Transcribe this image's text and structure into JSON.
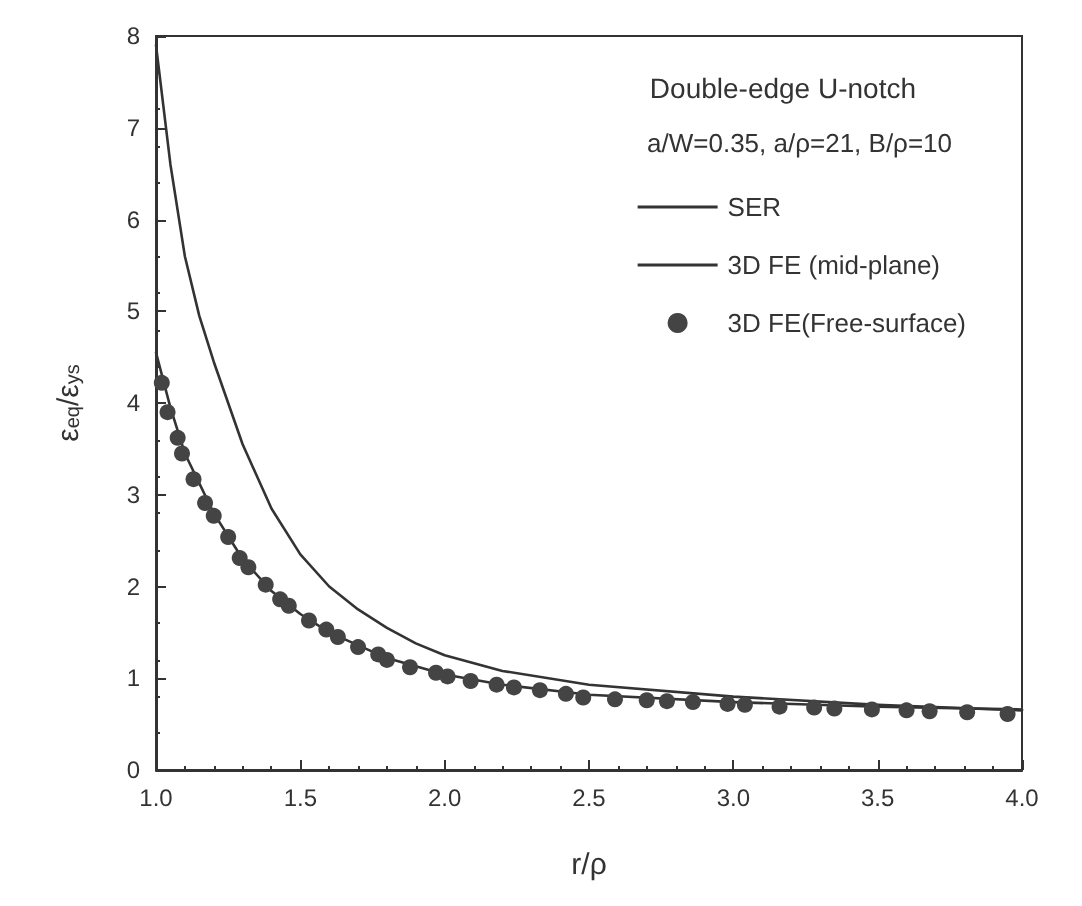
{
  "chart_data": {
    "type": "line",
    "title": "Double-edge U-notch",
    "subtitle": "a/W=0.35, a/ρ=21, B/ρ=10",
    "xlabel": "r/ρ",
    "ylabel": "ε$_{eq}$/ε$_{ys}$",
    "xlim": [
      1,
      4
    ],
    "xticks": [
      {
        "value": 1,
        "label": "1.0"
      },
      {
        "value": 1.5,
        "label": "1.5"
      },
      {
        "value": 2,
        "label": "2.0"
      },
      {
        "value": 2.5,
        "label": "2.5"
      },
      {
        "value": 3,
        "label": "3.0"
      },
      {
        "value": 3.5,
        "label": "3.5"
      },
      {
        "value": 4,
        "label": "4.0"
      }
    ],
    "ylim": [
      0,
      8
    ],
    "yticks": [
      0,
      1,
      2,
      3,
      4,
      5,
      6,
      7,
      8
    ],
    "grid": false,
    "legend": "top right",
    "line_style": "solid",
    "series": [
      {
        "name": "SER",
        "color": "#333333",
        "marker": "none",
        "x": [
          1.0,
          1.05,
          1.1,
          1.15,
          1.2,
          1.3,
          1.4,
          1.5,
          1.6,
          1.7,
          1.8,
          1.9,
          2.0,
          2.2,
          2.5,
          3.0,
          3.5,
          4.0
        ],
        "values": [
          7.9,
          6.6,
          5.6,
          4.95,
          4.45,
          3.55,
          2.85,
          2.35,
          2.0,
          1.75,
          1.55,
          1.38,
          1.25,
          1.08,
          0.93,
          0.8,
          0.71,
          0.65
        ]
      },
      {
        "name": "3D FE (mid-plane)",
        "color": "#333333",
        "marker": "none",
        "x": [
          1.0,
          1.05,
          1.1,
          1.2,
          1.3,
          1.4,
          1.5,
          1.6,
          1.8,
          2.0,
          2.2,
          2.5,
          3.0,
          3.5,
          4.0
        ],
        "values": [
          4.55,
          3.95,
          3.45,
          2.8,
          2.3,
          1.95,
          1.7,
          1.5,
          1.22,
          1.04,
          0.93,
          0.82,
          0.74,
          0.69,
          0.66
        ]
      },
      {
        "name": "3D FE(Free-surface)",
        "type": "scatter",
        "color": "#444444",
        "marker": "circle",
        "x": [
          1.02,
          1.04,
          1.075,
          1.09,
          1.13,
          1.17,
          1.2,
          1.25,
          1.29,
          1.32,
          1.38,
          1.43,
          1.46,
          1.53,
          1.59,
          1.63,
          1.7,
          1.77,
          1.8,
          1.88,
          1.97,
          2.01,
          2.09,
          2.18,
          2.24,
          2.33,
          2.42,
          2.48,
          2.59,
          2.7,
          2.77,
          2.86,
          2.98,
          3.04,
          3.16,
          3.28,
          3.35,
          3.48,
          3.6,
          3.68,
          3.81,
          3.95
        ],
        "values": [
          4.22,
          3.9,
          3.62,
          3.45,
          3.17,
          2.91,
          2.77,
          2.54,
          2.31,
          2.21,
          2.02,
          1.86,
          1.79,
          1.63,
          1.53,
          1.45,
          1.34,
          1.26,
          1.2,
          1.12,
          1.06,
          1.02,
          0.97,
          0.93,
          0.9,
          0.87,
          0.83,
          0.79,
          0.77,
          0.76,
          0.75,
          0.74,
          0.72,
          0.71,
          0.69,
          0.68,
          0.67,
          0.66,
          0.65,
          0.64,
          0.63,
          0.61
        ]
      }
    ]
  }
}
